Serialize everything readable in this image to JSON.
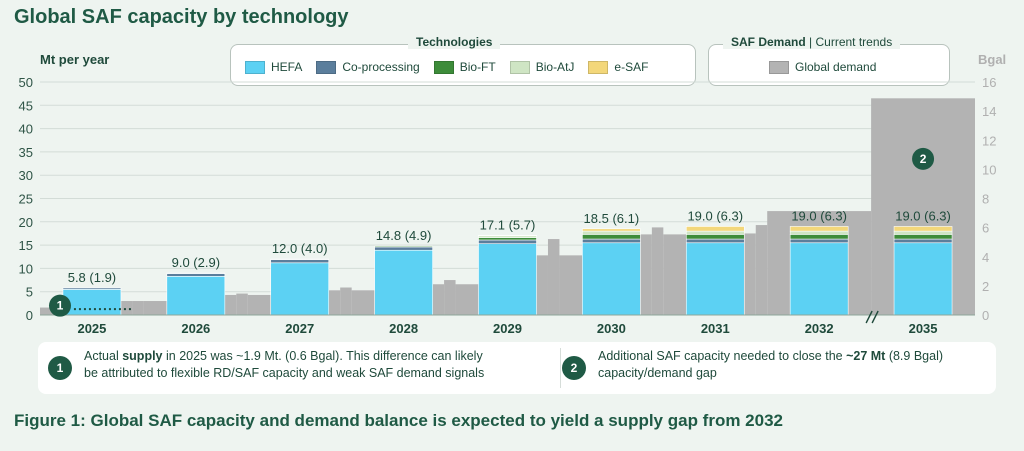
{
  "title": "Global SAF capacity by technology",
  "figure_caption": "Figure 1: Global SAF capacity and demand balance is expected to yield a supply gap from 2032",
  "legend_tech": {
    "title": "Technologies",
    "items": [
      {
        "label": "HEFA",
        "color": "#5cd1f3"
      },
      {
        "label": "Co-processing",
        "color": "#5b7e9c"
      },
      {
        "label": "Bio-FT",
        "color": "#3d8c3a"
      },
      {
        "label": "Bio-AtJ",
        "color": "#cfe5c4"
      },
      {
        "label": "e-SAF",
        "color": "#f3d77a"
      }
    ]
  },
  "legend_demand": {
    "title_bold": "SAF Demand",
    "title_sep": "|",
    "title_light": "Current trends",
    "items": [
      {
        "label": "Global demand",
        "color": "#b3b3b3"
      }
    ]
  },
  "notes": [
    {
      "badge": "1",
      "pre": "Actual ",
      "bold": "supply",
      "post": " in 2025 was ~1.9 Mt. (0.6 Bgal). This difference can likely",
      "line2": "be attributed to flexible RD/SAF capacity and weak SAF demand signals"
    },
    {
      "badge": "2",
      "pre": "Additional SAF capacity needed to close the ",
      "bold": "~27 Mt",
      "post": " (8.9 Bgal)",
      "line2": "capacity/demand gap"
    }
  ],
  "chart_data": {
    "type": "bar",
    "ylabel": "Mt  per year",
    "y2label": "Bgal",
    "ylim": [
      0,
      50
    ],
    "yticks": [
      0,
      5,
      10,
      15,
      20,
      25,
      30,
      35,
      40,
      45,
      50
    ],
    "y2lim": [
      0,
      16
    ],
    "y2ticks": [
      0,
      2,
      4,
      6,
      8,
      10,
      12,
      14,
      16
    ],
    "categories": [
      "2025",
      "2026",
      "2027",
      "2028",
      "2029",
      "2030",
      "2031",
      "2032",
      "2035"
    ],
    "axis_break_between": [
      "2032",
      "2035"
    ],
    "supply_series": [
      {
        "name": "HEFA",
        "values": [
          5.5,
          8.3,
          11.2,
          13.9,
          15.3,
          15.5,
          15.5,
          15.5,
          15.5
        ]
      },
      {
        "name": "Co-processing",
        "values": [
          0.3,
          0.6,
          0.7,
          0.7,
          0.8,
          0.8,
          0.8,
          0.8,
          0.8
        ]
      },
      {
        "name": "Bio-FT",
        "values": [
          0,
          0.1,
          0.1,
          0.2,
          0.5,
          1.0,
          1.0,
          1.0,
          1.0
        ]
      },
      {
        "name": "Bio-AtJ",
        "values": [
          0,
          0,
          0,
          0,
          0.4,
          0.7,
          0.7,
          0.7,
          0.7
        ]
      },
      {
        "name": "e-SAF",
        "values": [
          0,
          0,
          0,
          0,
          0.1,
          0.5,
          1.0,
          1.0,
          1.0
        ]
      }
    ],
    "totals_labels": [
      "5.8 (1.9)",
      "9.0 (2.9)",
      "12.0 (4.0)",
      "14.8 (4.9)",
      "17.1 (5.7)",
      "18.5 (6.1)",
      "19.0 (6.3)",
      "19.0 (6.3)",
      "19.0 (6.3)"
    ],
    "demand_series": {
      "name": "Global demand",
      "values": [
        [
          1.6,
          3.0
        ],
        [
          3.0,
          4.3
        ],
        [
          4.3,
          5.3
        ],
        [
          5.3,
          6.6
        ],
        [
          6.6,
          12.8
        ],
        [
          12.8,
          17.3
        ],
        [
          17.3,
          17.5
        ],
        [
          22.3,
          22.3
        ],
        [
          46.5,
          46.5
        ]
      ]
    },
    "actual_supply_2025": 1.9,
    "annotations": [
      {
        "badge": "1",
        "category": "2025",
        "y": 2.0
      },
      {
        "badge": "2",
        "category": "2035",
        "y": 33.5
      }
    ]
  }
}
